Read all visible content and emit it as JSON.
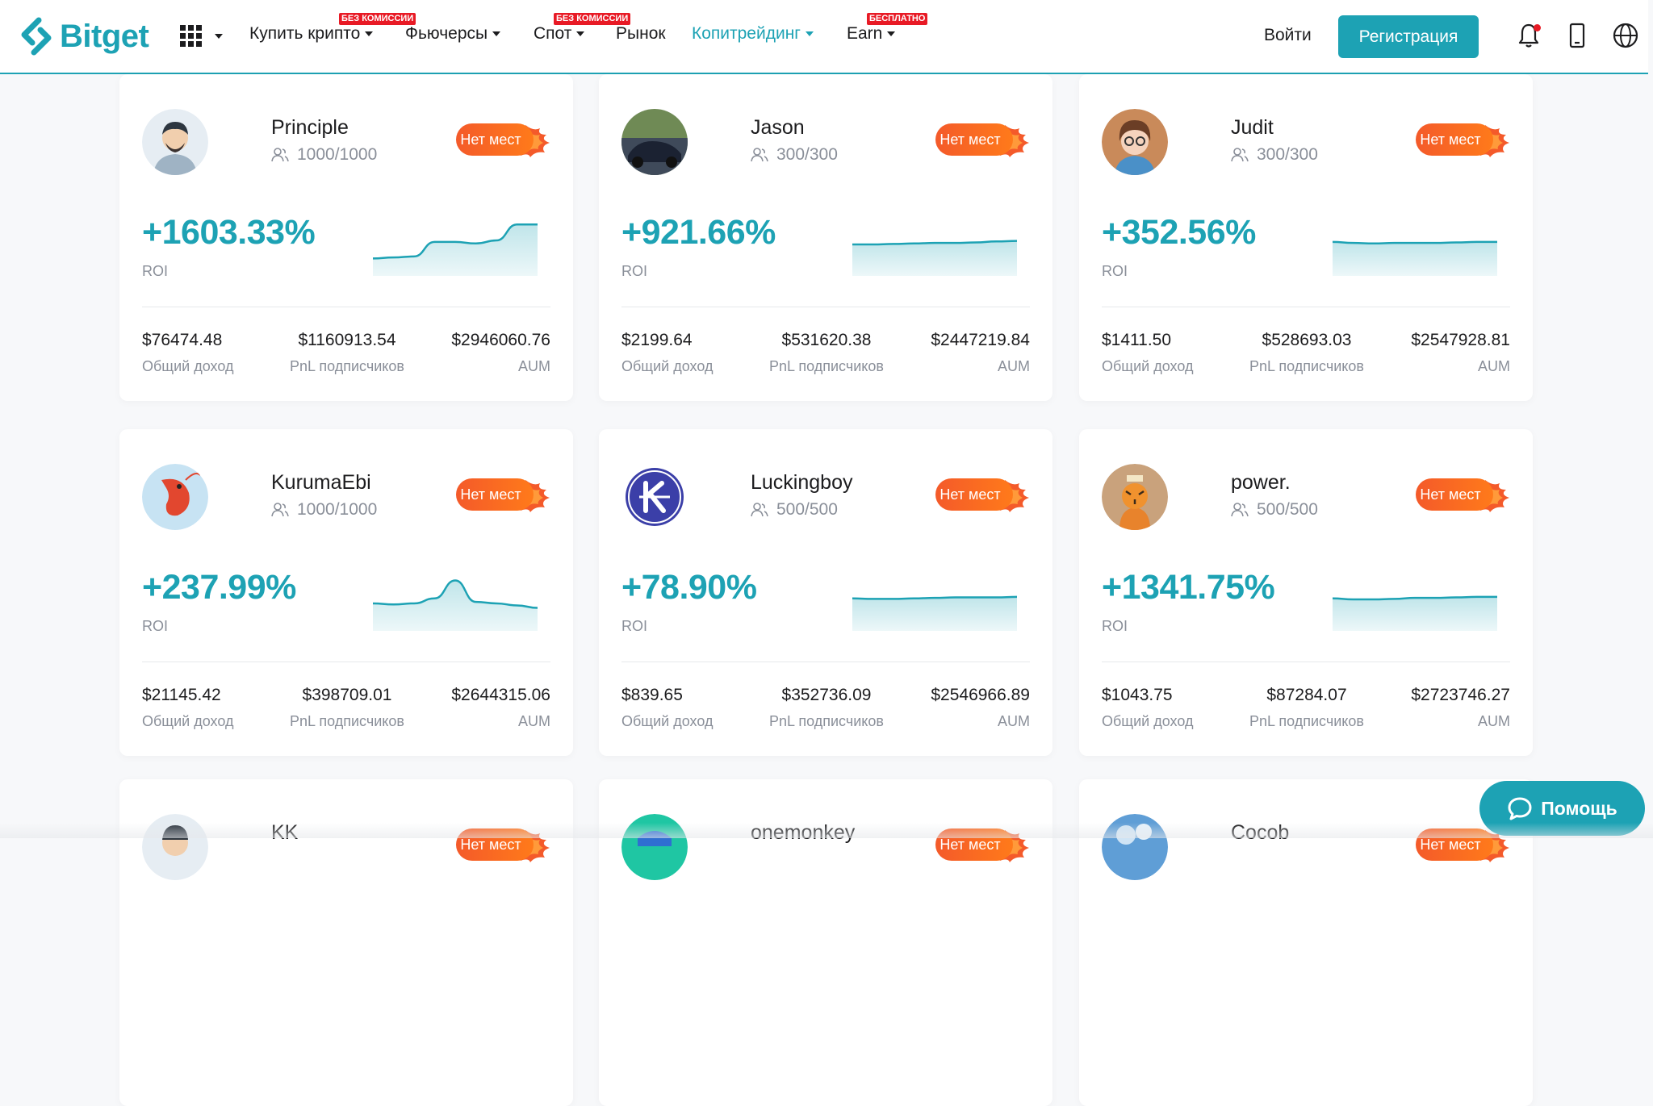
{
  "brand": {
    "name": "Bitget",
    "accent": "#1da2b4",
    "badge_color": "#e81a25",
    "hot_color": "#f45a2a"
  },
  "nav": {
    "apps_icon": "grid-apps-icon",
    "items": [
      {
        "label": "Купить крипто",
        "badge": "БЕЗ КОМИССИИ"
      },
      {
        "label": "Фьючерсы",
        "badge": ""
      },
      {
        "label": "Спот",
        "badge": "БЕЗ КОМИССИИ"
      },
      {
        "label": "Рынок",
        "badge": ""
      },
      {
        "label": "Копитрейдинг",
        "badge": ""
      },
      {
        "label": "Earn",
        "badge": "БЕСПЛАТНО"
      }
    ],
    "login": "Войти",
    "register": "Регистрация",
    "icons": [
      "bell-icon",
      "mobile-icon",
      "globe-icon"
    ]
  },
  "labels": {
    "full": "Нет мест",
    "roi": "ROI",
    "total_income": "Общий доход",
    "subscriber_pnl": "PnL подписчиков",
    "aum": "AUM"
  },
  "traders": [
    {
      "name": "Principle",
      "followers": "1000/1000",
      "roi": "+1603.33%",
      "income": "$76474.48",
      "pnl": "$1160913.54",
      "aum": "$2946060.76",
      "spark": [
        0.22,
        0.24,
        0.26,
        0.55,
        0.55,
        0.52,
        0.58,
        0.9,
        0.9
      ]
    },
    {
      "name": "Jason",
      "followers": "300/300",
      "roi": "+921.66%",
      "income": "$2199.64",
      "pnl": "$531620.38",
      "aum": "$2447219.84",
      "spark": [
        0.5,
        0.5,
        0.51,
        0.52,
        0.53,
        0.53,
        0.54,
        0.56,
        0.57
      ]
    },
    {
      "name": "Judit",
      "followers": "300/300",
      "roi": "+352.56%",
      "income": "$1411.50",
      "pnl": "$528693.03",
      "aum": "$2547928.81",
      "spark": [
        0.55,
        0.53,
        0.52,
        0.53,
        0.53,
        0.53,
        0.54,
        0.55,
        0.55
      ]
    },
    {
      "name": "KurumaEbi",
      "followers": "1000/1000",
      "roi": "+237.99%",
      "income": "$21145.42",
      "pnl": "$398709.01",
      "aum": "$2644315.06",
      "spark": [
        0.42,
        0.4,
        0.42,
        0.52,
        0.88,
        0.45,
        0.42,
        0.38,
        0.33
      ]
    },
    {
      "name": "Luckingboy",
      "followers": "500/500",
      "roi": "+78.90%",
      "income": "$839.65",
      "pnl": "$352736.09",
      "aum": "$2546966.89",
      "spark": [
        0.52,
        0.51,
        0.51,
        0.52,
        0.53,
        0.54,
        0.54,
        0.54,
        0.55
      ]
    },
    {
      "name": "power.",
      "followers": "500/500",
      "roi": "+1341.75%",
      "income": "$1043.75",
      "pnl": "$87284.07",
      "aum": "$2723746.27",
      "spark": [
        0.52,
        0.5,
        0.5,
        0.51,
        0.53,
        0.53,
        0.54,
        0.55,
        0.55
      ]
    },
    {
      "name": "KK"
    },
    {
      "name": "onemonkey"
    },
    {
      "name": "Cocob"
    }
  ],
  "help": {
    "label": "Помощь",
    "icon": "chat-bubble-icon"
  }
}
